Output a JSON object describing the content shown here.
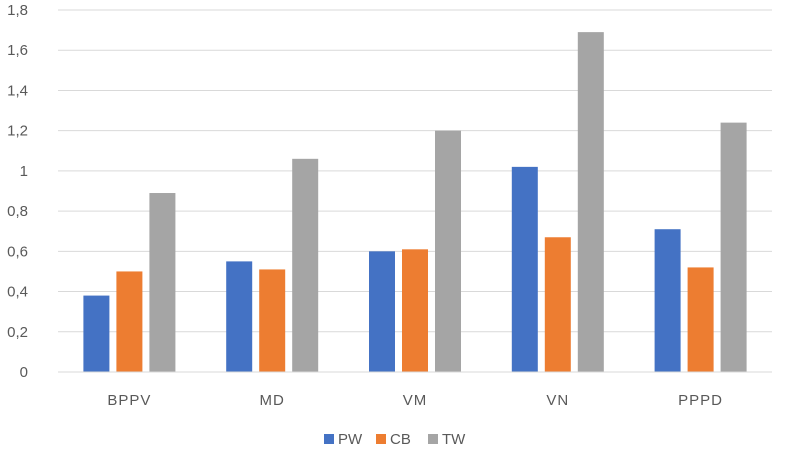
{
  "chart_data": {
    "type": "bar",
    "categories": [
      "BPPV",
      "MD",
      "VM",
      "VN",
      "PPPD"
    ],
    "series": [
      {
        "name": "PW",
        "values": [
          0.38,
          0.55,
          0.6,
          1.02,
          0.71
        ],
        "color": "#4472C4"
      },
      {
        "name": "CB",
        "values": [
          0.5,
          0.51,
          0.61,
          0.67,
          0.52
        ],
        "color": "#ED7D31"
      },
      {
        "name": "TW",
        "values": [
          0.89,
          1.06,
          1.2,
          1.69,
          1.24
        ],
        "color": "#A5A5A5"
      }
    ],
    "ylim": [
      0,
      1.8
    ],
    "yticks": [
      "0",
      "0,2",
      "0,4",
      "0,6",
      "0,8",
      "1",
      "1,2",
      "1,4",
      "1,6",
      "1,8"
    ],
    "grid": true,
    "legend_position": "bottom",
    "title": "",
    "xlabel": "",
    "ylabel": ""
  }
}
